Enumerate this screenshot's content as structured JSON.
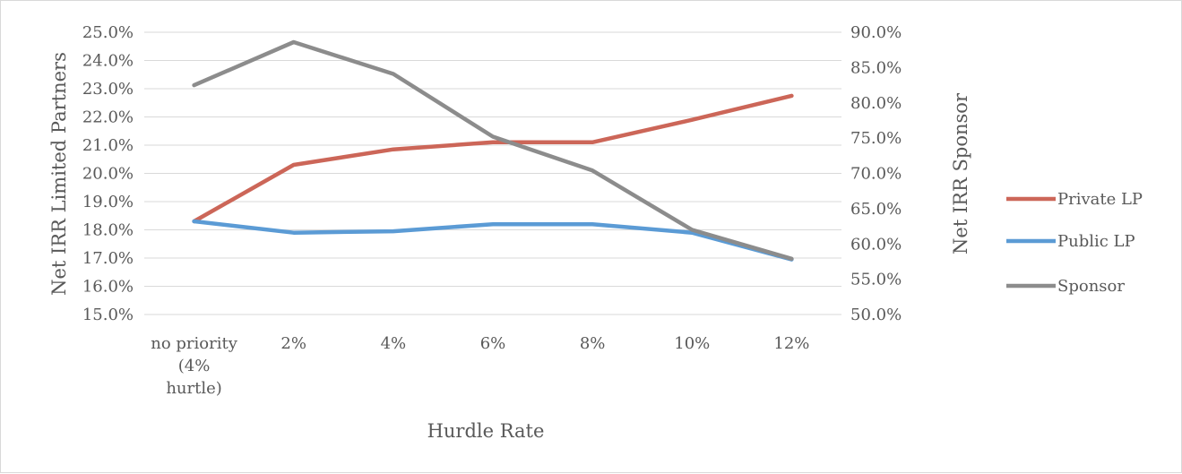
{
  "chart_data": {
    "type": "line",
    "categories": [
      [
        "no priority",
        "(4%",
        "hurtle)"
      ],
      [
        "2%"
      ],
      [
        "4%"
      ],
      [
        "6%"
      ],
      [
        "8%"
      ],
      [
        "10%"
      ],
      [
        "12%"
      ]
    ],
    "xlabel": "Hurdle Rate",
    "ylabel_left": "Net IRR Limited Partners",
    "ylabel_right": "Net IRR Sponsor",
    "y_left": {
      "range": [
        15,
        25
      ],
      "step": 1,
      "ticks": [
        "15.0%",
        "16.0%",
        "17.0%",
        "18.0%",
        "19.0%",
        "20.0%",
        "21.0%",
        "22.0%",
        "23.0%",
        "24.0%",
        "25.0%"
      ]
    },
    "y_right": {
      "range": [
        50,
        90
      ],
      "step": 5,
      "ticks": [
        "50.0%",
        "55.0%",
        "60.0%",
        "65.0%",
        "70.0%",
        "75.0%",
        "80.0%",
        "85.0%",
        "90.0%"
      ]
    },
    "grid": true,
    "legend_position": "right",
    "series": [
      {
        "name": "Private LP",
        "axis": "left",
        "color": "#cc6658",
        "values": [
          18.3,
          20.3,
          20.85,
          21.1,
          21.1,
          21.9,
          22.75
        ]
      },
      {
        "name": "Public LP",
        "axis": "left",
        "color": "#5b9bd5",
        "values": [
          18.3,
          17.9,
          17.95,
          18.2,
          18.2,
          17.9,
          16.95
        ]
      },
      {
        "name": "Sponsor",
        "axis": "right",
        "color": "#8c8c8c",
        "values": [
          82.5,
          88.6,
          84.1,
          75.2,
          70.4,
          62.0,
          57.9
        ]
      }
    ]
  }
}
